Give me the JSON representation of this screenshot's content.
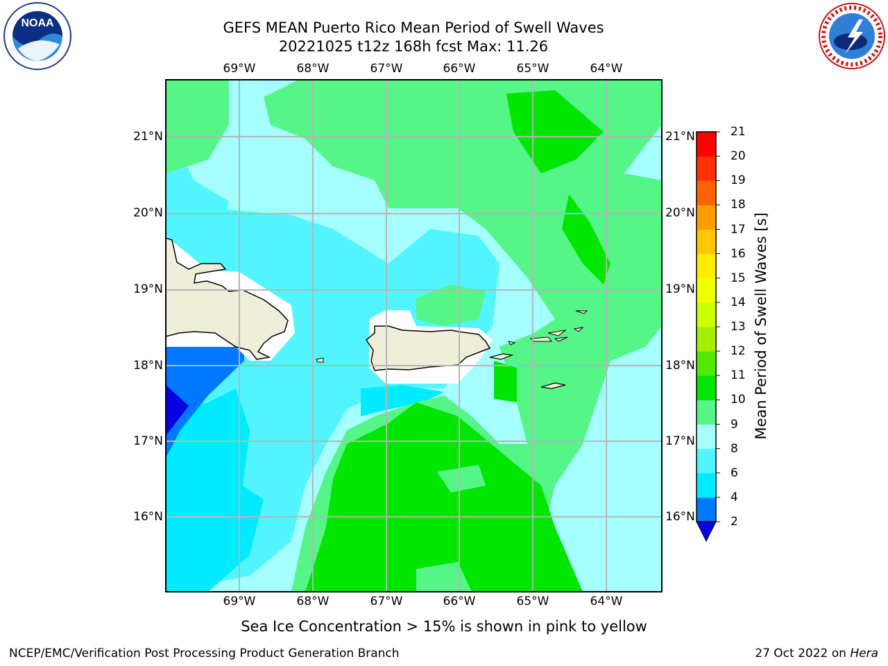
{
  "title_line1": "GEFS MEAN Puerto Rico Mean Period of Swell Waves",
  "title_line2": "20221025 t12z 168h fcst   Max: 11.26",
  "lon_labels": [
    "69°W",
    "68°W",
    "67°W",
    "66°W",
    "65°W",
    "64°W"
  ],
  "lat_labels": [
    "21°N",
    "20°N",
    "19°N",
    "18°N",
    "17°N",
    "16°N"
  ],
  "colorbar": {
    "label": "Mean Period of Swell Waves [s]",
    "ticks": [
      "2",
      "4",
      "6",
      "8",
      "9",
      "10",
      "11",
      "12",
      "13",
      "14",
      "15",
      "16",
      "17",
      "18",
      "19",
      "20",
      "21"
    ],
    "colors": [
      "#0a00e6",
      "#0078ff",
      "#00ebff",
      "#52f5ff",
      "#a5ffff",
      "#55f587",
      "#00e600",
      "#50eb00",
      "#a5f000",
      "#ccff00",
      "#f0ff00",
      "#ffee00",
      "#ffc600",
      "#ff9c00",
      "#ff6400",
      "#ff3200",
      "#ff0000"
    ]
  },
  "footnote": "Sea Ice Concentration > 15% is shown in pink to yellow",
  "footer_left": "NCEP/EMC/Verification Post Processing Product Generation Branch",
  "footer_date": "27 Oct 2022 on ",
  "footer_host": "Hera",
  "logos": {
    "left": "NOAA",
    "right": "NATIONAL WEATHER SERVICE"
  },
  "chart_data": {
    "type": "heatmap",
    "title": "GEFS MEAN Puerto Rico Mean Period of Swell Waves",
    "subtitle": "20221025 t12z 168h fcst   Max: 11.26",
    "variable": "Mean Period of Swell Waves [s]",
    "max": 11.26,
    "xlim": [
      -70,
      -63.3
    ],
    "ylim": [
      15,
      21.7
    ],
    "grid": true,
    "legend_placement": "right",
    "levels": [
      2,
      4,
      6,
      8,
      9,
      10,
      11,
      12,
      13,
      14,
      15,
      16,
      17,
      18,
      19,
      20,
      21
    ]
  }
}
